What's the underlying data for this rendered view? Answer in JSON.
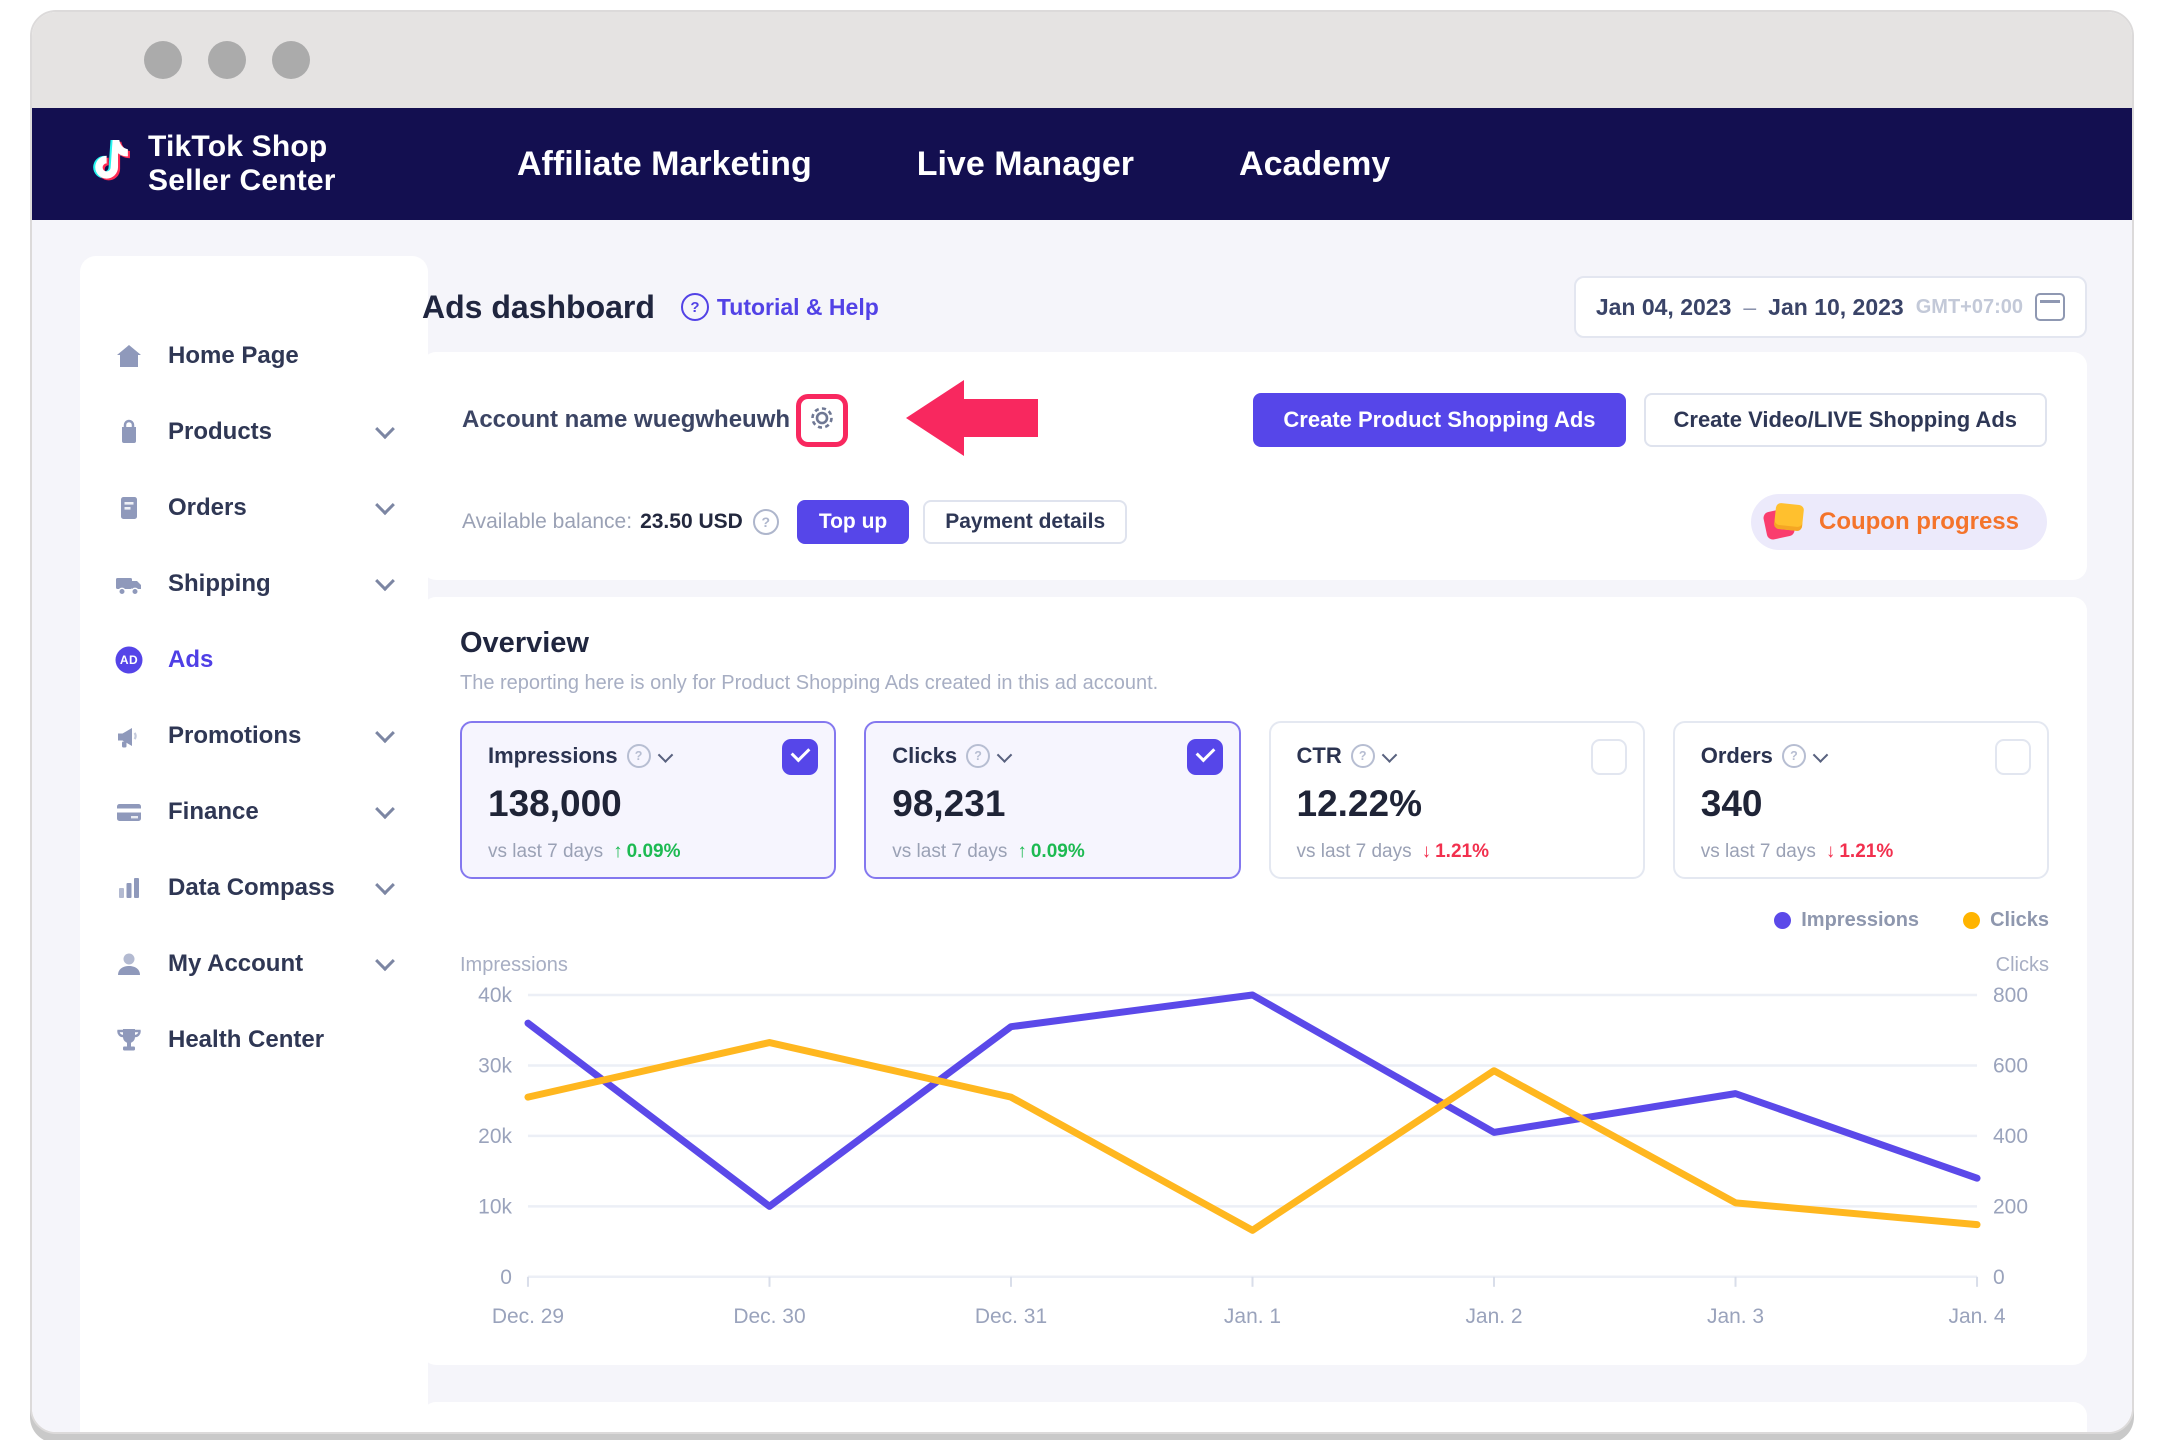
{
  "navbar": {
    "logo_line1": "TikTok Shop",
    "logo_line2": "Seller Center",
    "links": [
      "Affiliate Marketing",
      "Live Manager",
      "Academy"
    ]
  },
  "sidebar": {
    "items": [
      {
        "label": "Home Page"
      },
      {
        "label": "Products"
      },
      {
        "label": "Orders"
      },
      {
        "label": "Shipping"
      },
      {
        "label": "Ads",
        "badge": "AD"
      },
      {
        "label": "Promotions"
      },
      {
        "label": "Finance"
      },
      {
        "label": "Data Compass"
      },
      {
        "label": "My Account"
      },
      {
        "label": "Health Center"
      }
    ]
  },
  "header": {
    "title": "Ads dashboard",
    "tutorial_link": "Tutorial & Help",
    "date_start": "Jan 04, 2023",
    "date_separator": "–",
    "date_end": "Jan 10, 2023",
    "timezone": "GMT+07:00"
  },
  "account": {
    "name": "Account name wuegwheuwh",
    "create_product_ads": "Create Product Shopping Ads",
    "create_video_ads": "Create Video/LIVE Shopping Ads",
    "balance_label": "Available balance:",
    "balance_value": "23.50 USD",
    "top_up": "Top up",
    "payment_details": "Payment details",
    "coupon_progress": "Coupon progress"
  },
  "overview": {
    "title": "Overview",
    "subtitle": "The reporting here is only for Product Shopping Ads created in this ad account.",
    "metrics": [
      {
        "label": "Impressions",
        "value": "138,000",
        "compare": "vs last 7 days",
        "delta": "0.09%",
        "direction": "up",
        "selected": true
      },
      {
        "label": "Clicks",
        "value": "98,231",
        "compare": "vs last 7 days",
        "delta": "0.09%",
        "direction": "up",
        "selected": true
      },
      {
        "label": "CTR",
        "value": "12.22%",
        "compare": "vs last 7 days",
        "delta": "1.21%",
        "direction": "down",
        "selected": false
      },
      {
        "label": "Orders",
        "value": "340",
        "compare": "vs last 7 days",
        "delta": "1.21%",
        "direction": "down",
        "selected": false
      }
    ]
  },
  "chart_data": {
    "type": "line",
    "x": [
      "Dec. 29",
      "Dec. 30",
      "Dec. 31",
      "Jan. 1",
      "Jan. 2",
      "Jan. 3",
      "Jan. 4"
    ],
    "series": [
      {
        "name": "Impressions",
        "axis": "left",
        "color": "#5B49E9",
        "values": [
          36000,
          10000,
          35500,
          40000,
          20500,
          26000,
          14000
        ]
      },
      {
        "name": "Clicks",
        "axis": "right",
        "color": "#FFB71F",
        "values": [
          510,
          665,
          510,
          132,
          585,
          210,
          148
        ]
      }
    ],
    "left_axis": {
      "label": "Impressions",
      "range": [
        0,
        40000
      ],
      "ticks": [
        "0",
        "10k",
        "20k",
        "30k",
        "40k"
      ]
    },
    "right_axis": {
      "label": "Clicks",
      "range": [
        0,
        800
      ],
      "ticks": [
        "0",
        "200",
        "400",
        "600",
        "800"
      ]
    },
    "legend": [
      {
        "name": "Impressions",
        "color": "#5B49E9"
      },
      {
        "name": "Clicks",
        "color": "#FFB400"
      }
    ],
    "grid": true,
    "legend_position": "top-right"
  },
  "colors": {
    "nav_bg": "#130F50",
    "accent_purple": "#5646E9",
    "line_impressions": "#5B49E9",
    "line_clicks": "#FFB71F",
    "positive_green": "#1DBA52",
    "negative_red": "#F2304E",
    "annotation_pink": "#F8285F",
    "coupon_orange": "#F4742B",
    "content_bg": "#F5F5FA"
  }
}
